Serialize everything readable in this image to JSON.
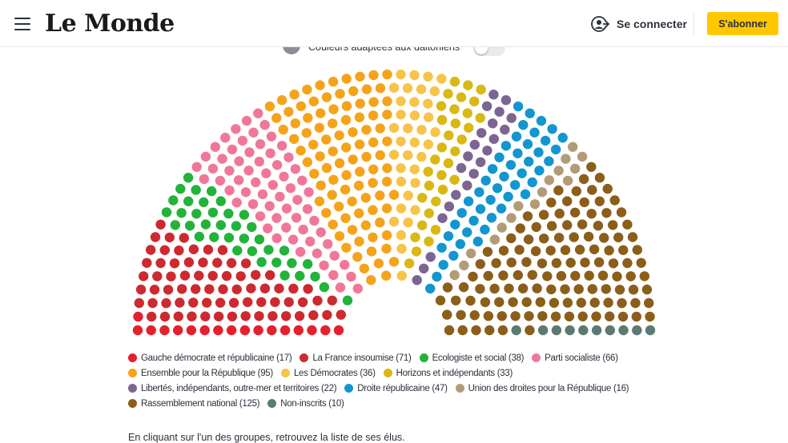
{
  "header": {
    "logo_text": "Le Monde",
    "login_label": "Se connecter",
    "subscribe_label": "S'abonner"
  },
  "accessibility": {
    "toggle_label": "Couleurs adaptées aux daltoniens",
    "toggle_on": false
  },
  "parties": [
    {
      "name": "Gauche démocrate et républicaine",
      "seats": 17,
      "color": "#e5202e"
    },
    {
      "name": "La France insoumise",
      "seats": 71,
      "color": "#cc2a30"
    },
    {
      "name": "Ecologiste et social",
      "seats": 38,
      "color": "#22b33a"
    },
    {
      "name": "Parti socialiste",
      "seats": 66,
      "color": "#f0779a"
    },
    {
      "name": "Ensemble pour la République",
      "seats": 95,
      "color": "#f5a31a"
    },
    {
      "name": "Les Démocrates",
      "seats": 36,
      "color": "#f7c44a"
    },
    {
      "name": "Horizons et indépendants",
      "seats": 33,
      "color": "#d9b814"
    },
    {
      "name": "Libertés, indépendants, outre-mer et territoires",
      "seats": 22,
      "color": "#7a6593"
    },
    {
      "name": "Droite républicaine",
      "seats": 47,
      "color": "#1396cf"
    },
    {
      "name": "Union des droites pour la République",
      "seats": 16,
      "color": "#b39b78"
    },
    {
      "name": "Rassemblement national",
      "seats": 125,
      "color": "#8b5e1a"
    },
    {
      "name": "Non-inscrits",
      "seats": 10,
      "color": "#5c7a72"
    }
  ],
  "legend_rows": [
    [
      0,
      1,
      2,
      3
    ],
    [
      4,
      5,
      6
    ],
    [
      7,
      8,
      9
    ],
    [
      10,
      11
    ]
  ],
  "footnote": "En cliquant sur l'un des groupes, retrouvez la liste de ses élus."
}
